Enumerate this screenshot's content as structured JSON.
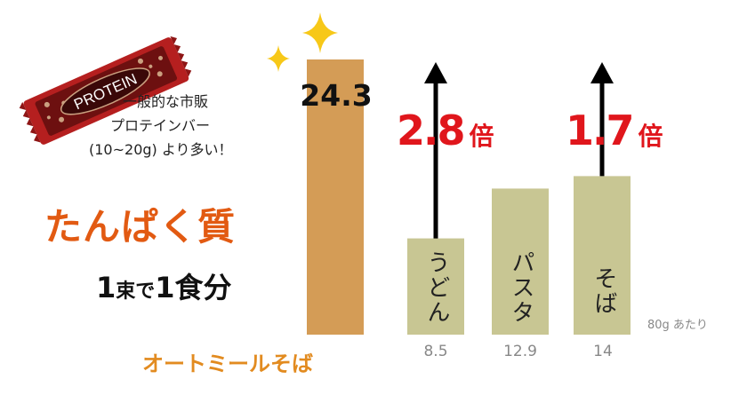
{
  "chart_data": {
    "type": "bar",
    "categories": [
      "オートミールそば",
      "うどん",
      "パスタ",
      "そば"
    ],
    "values": [
      24.3,
      8.5,
      12.9,
      14
    ],
    "value_labels": [
      "24.3",
      "8.5",
      "12.9",
      "14"
    ],
    "ylim": [
      0,
      26
    ],
    "unit_note": "80g あたり",
    "multipliers": [
      {
        "label": "2.8",
        "suffix": "倍",
        "category": "うどん"
      },
      {
        "label": "1.7",
        "suffix": "倍",
        "category": "そば"
      }
    ],
    "colors": {
      "highlight": "#d49c56",
      "other": "#c8c693",
      "arrow": "#000000",
      "multiplier": "#e0161c"
    }
  },
  "headline": "たんぱく質",
  "subline": {
    "num1": "1",
    "word1": "束で",
    "num2": "1",
    "word2": "食分"
  },
  "note_lines": [
    "一般的な市販",
    "プロテインバー",
    "(10~20g) より多い！"
  ],
  "protein_bar_text": "PROTEIN",
  "colors": {
    "headline": "#e25a12",
    "label": "#e28b20",
    "sparkle": "#f7c818"
  }
}
